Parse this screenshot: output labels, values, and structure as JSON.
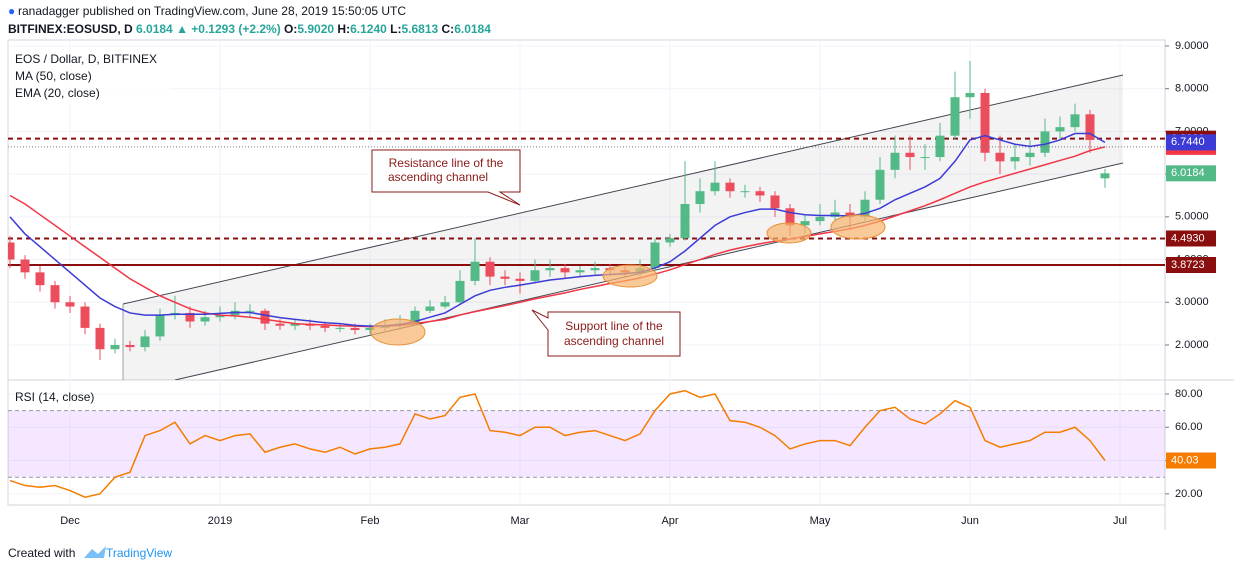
{
  "header": {
    "published": "ranadagger published on TradingView.com, June 28, 2019 15:50:05 UTC",
    "symbol": "BITFINEX:EOSUSD, D",
    "last": "6.0184",
    "change": "▲ +0.1293 (+2.2%)",
    "ohlc": [
      {
        "k": "O:",
        "v": "5.9020"
      },
      {
        "k": "H:",
        "v": "6.1240"
      },
      {
        "k": "L:",
        "v": "5.6813"
      },
      {
        "k": "C:",
        "v": "6.0184"
      }
    ]
  },
  "footer": {
    "created": "Created with",
    "brand": "TradingView"
  },
  "chart_data": [
    {
      "type": "candlestick",
      "title": "EOS / Dollar, D, BITFINEX",
      "categories": [
        null,
        null,
        null,
        null,
        "Dec",
        null,
        null,
        null,
        null,
        null,
        null,
        null,
        null,
        null,
        "2019",
        null,
        null,
        null,
        null,
        null,
        null,
        null,
        null,
        null,
        "Feb",
        null,
        null,
        null,
        null,
        null,
        null,
        null,
        null,
        null,
        "Mar",
        null,
        null,
        null,
        null,
        null,
        null,
        null,
        null,
        null,
        "Apr",
        null,
        null,
        null,
        null,
        null,
        null,
        null,
        null,
        null,
        "May",
        null,
        null,
        null,
        null,
        null,
        null,
        null,
        null,
        null,
        "Jun",
        null,
        null,
        null,
        null,
        null,
        null,
        null,
        null,
        null,
        "Jul"
      ],
      "open": [
        4.4,
        4.0,
        3.7,
        3.4,
        3.0,
        2.9,
        2.4,
        1.9,
        2.0,
        1.95,
        2.2,
        2.7,
        2.75,
        2.55,
        2.65,
        2.7,
        2.8,
        2.8,
        2.5,
        2.45,
        2.5,
        2.45,
        2.4,
        2.4,
        2.35,
        2.4,
        2.45,
        2.5,
        2.8,
        2.9,
        3.0,
        3.5,
        3.95,
        3.6,
        3.55,
        3.5,
        3.75,
        3.8,
        3.7,
        3.75,
        3.8,
        3.75,
        3.7,
        3.8,
        4.4,
        4.5,
        5.3,
        5.6,
        5.8,
        5.6,
        5.6,
        5.5,
        5.2,
        4.8,
        4.9,
        5.0,
        5.1,
        5.0,
        5.4,
        6.1,
        6.5,
        6.4,
        6.4,
        6.9,
        7.8,
        7.9,
        6.5,
        6.3,
        6.4,
        6.5,
        7.0,
        7.1,
        7.4,
        5.902,
        null
      ],
      "high": [
        4.55,
        4.1,
        3.85,
        3.5,
        3.15,
        3.0,
        2.5,
        2.15,
        2.1,
        2.35,
        2.85,
        3.15,
        2.9,
        2.8,
        2.9,
        3.0,
        2.95,
        2.85,
        2.6,
        2.6,
        2.6,
        2.55,
        2.5,
        2.5,
        2.5,
        2.6,
        2.7,
        2.9,
        3.05,
        3.15,
        3.75,
        4.5,
        4.05,
        3.75,
        3.7,
        4.0,
        4.0,
        3.9,
        3.85,
        3.95,
        3.9,
        3.85,
        4.0,
        4.5,
        4.6,
        6.3,
        5.9,
        6.3,
        5.9,
        5.75,
        5.7,
        5.6,
        5.3,
        5.05,
        5.3,
        5.4,
        5.3,
        5.6,
        6.4,
        6.9,
        6.9,
        6.7,
        7.2,
        8.4,
        8.65,
        8.0,
        6.9,
        6.7,
        6.8,
        7.3,
        7.35,
        7.65,
        7.5,
        6.124,
        null
      ],
      "low": [
        3.8,
        3.55,
        3.25,
        2.85,
        2.75,
        2.25,
        1.65,
        1.8,
        1.85,
        1.85,
        2.1,
        2.6,
        2.4,
        2.45,
        2.55,
        2.6,
        2.65,
        2.35,
        2.35,
        2.35,
        2.35,
        2.3,
        2.3,
        2.25,
        2.25,
        2.3,
        2.35,
        2.45,
        2.75,
        2.85,
        2.95,
        3.4,
        3.4,
        3.4,
        3.2,
        3.45,
        3.6,
        3.55,
        3.6,
        3.65,
        3.65,
        3.6,
        3.6,
        3.75,
        4.3,
        4.45,
        5.1,
        5.5,
        5.45,
        5.45,
        5.35,
        5.0,
        4.55,
        4.6,
        4.8,
        4.9,
        4.7,
        4.9,
        5.3,
        5.9,
        6.1,
        6.1,
        6.3,
        6.8,
        7.3,
        6.3,
        6.0,
        6.1,
        6.2,
        6.4,
        6.8,
        7.0,
        6.5,
        5.6813,
        null
      ],
      "close": [
        4.0,
        3.7,
        3.4,
        3.0,
        2.9,
        2.4,
        1.9,
        2.0,
        1.95,
        2.2,
        2.7,
        2.75,
        2.55,
        2.65,
        2.7,
        2.8,
        2.8,
        2.5,
        2.45,
        2.5,
        2.45,
        2.4,
        2.4,
        2.35,
        2.4,
        2.45,
        2.5,
        2.8,
        2.9,
        3.0,
        3.5,
        3.95,
        3.6,
        3.55,
        3.5,
        3.75,
        3.8,
        3.7,
        3.75,
        3.8,
        3.75,
        3.7,
        3.8,
        4.4,
        4.5,
        5.3,
        5.6,
        5.8,
        5.6,
        5.6,
        5.5,
        5.2,
        4.8,
        4.9,
        5.0,
        5.1,
        5.0,
        5.4,
        6.1,
        6.5,
        6.4,
        6.4,
        6.9,
        7.8,
        7.9,
        6.5,
        6.3,
        6.4,
        6.5,
        7.0,
        7.1,
        7.4,
        6.8,
        6.0184,
        null
      ],
      "up_color": "#53b987",
      "down_color": "#eb4d5c",
      "last_label_color": "#53b987",
      "series": [
        {
          "name": "MA (50, close)",
          "color": "#f23645",
          "last_line": "dotted",
          "values": [
            5.5,
            5.3,
            5.05,
            4.8,
            4.55,
            4.3,
            4.05,
            3.8,
            3.55,
            3.35,
            3.15,
            3.0,
            2.85,
            2.75,
            2.7,
            2.68,
            2.65,
            2.6,
            2.55,
            2.5,
            2.48,
            2.47,
            2.45,
            2.44,
            2.43,
            2.44,
            2.46,
            2.5,
            2.55,
            2.6,
            2.7,
            2.78,
            2.85,
            2.92,
            3.0,
            3.08,
            3.15,
            3.22,
            3.3,
            3.37,
            3.44,
            3.5,
            3.57,
            3.66,
            3.76,
            3.88,
            4.0,
            4.12,
            4.22,
            4.3,
            4.37,
            4.43,
            4.48,
            4.54,
            4.6,
            4.66,
            4.72,
            4.8,
            4.9,
            5.02,
            5.14,
            5.26,
            5.4,
            5.55,
            5.7,
            5.82,
            5.92,
            6.02,
            6.12,
            6.22,
            6.32,
            6.42,
            6.55,
            6.6382,
            null
          ]
        },
        {
          "name": "EMA (20, close)",
          "color": "#3d3bd6",
          "values": [
            5.0,
            4.6,
            4.3,
            4.0,
            3.7,
            3.4,
            3.1,
            2.9,
            2.75,
            2.7,
            2.7,
            2.72,
            2.72,
            2.72,
            2.74,
            2.76,
            2.76,
            2.7,
            2.64,
            2.6,
            2.56,
            2.52,
            2.5,
            2.46,
            2.44,
            2.45,
            2.48,
            2.55,
            2.65,
            2.75,
            2.95,
            3.15,
            3.28,
            3.35,
            3.4,
            3.46,
            3.52,
            3.56,
            3.6,
            3.63,
            3.65,
            3.67,
            3.7,
            3.8,
            3.95,
            4.2,
            4.5,
            4.8,
            5.0,
            5.1,
            5.18,
            5.18,
            5.1,
            5.05,
            5.03,
            5.03,
            5.02,
            5.08,
            5.2,
            5.4,
            5.55,
            5.7,
            5.9,
            6.3,
            6.8,
            6.9,
            6.8,
            6.7,
            6.65,
            6.7,
            6.8,
            6.95,
            6.95,
            6.744,
            null
          ],
          "value_labels": [
            null,
            null,
            null,
            null,
            null,
            null,
            null,
            null,
            null,
            null,
            null,
            null,
            null,
            null,
            null,
            null,
            null,
            null,
            null,
            null,
            null,
            null,
            null,
            null,
            null,
            null,
            null,
            null,
            null,
            null,
            null,
            null,
            null,
            null,
            null,
            null,
            null,
            null,
            null,
            null,
            null,
            null,
            null,
            null,
            null,
            null,
            null,
            null,
            null,
            null,
            null,
            null,
            null,
            null,
            null,
            null,
            null,
            null,
            null,
            null,
            null,
            null,
            null,
            null,
            null,
            null,
            null,
            null,
            null,
            null,
            null,
            null,
            null,
            "6.7440",
            null
          ]
        }
      ],
      "price_lines": [
        {
          "value": 6.8299,
          "color": "#8b0e0e",
          "line": "dashed"
        },
        {
          "value": 4.493,
          "label": "4.4930",
          "color": "#8b0e0e",
          "line": "dashed"
        },
        {
          "value": 3.8723,
          "color": "#8b0e0e",
          "line": "solid"
        }
      ],
      "annotations": [
        {
          "lines": [
            "Resistance line of the",
            "ascending channel"
          ]
        },
        {
          "lines": [
            "Support line of the",
            "ascending channel"
          ]
        }
      ],
      "ylim": [
        1.18,
        9.14
      ],
      "yticks": [
        {
          "value": 2,
          "label": "2.0000"
        },
        {
          "value": 3,
          "label": "3.0000"
        },
        {
          "value": 4,
          "label": "4.0000"
        },
        {
          "value": 5,
          "label": "5.0000"
        },
        {
          "value": 6,
          "label": "6.0000"
        },
        {
          "value": 7,
          "label": "7.0000"
        },
        {
          "value": 8,
          "label": "8.0000"
        },
        {
          "value": 9,
          "label": "9.0000"
        }
      ],
      "grid": true
    },
    {
      "type": "line",
      "title": "RSI (14, close)",
      "color": "#f57c00",
      "values": [
        28,
        25,
        24,
        25,
        22,
        18,
        20,
        30,
        33,
        55,
        58,
        63,
        50,
        55,
        52,
        55,
        56,
        45,
        48,
        50,
        47,
        45,
        48,
        44,
        47,
        48,
        50,
        68,
        65,
        67,
        78,
        80,
        58,
        57,
        55,
        60,
        60,
        55,
        57,
        58,
        55,
        52,
        56,
        70,
        80,
        82,
        78,
        80,
        64,
        63,
        60,
        55,
        47,
        50,
        52,
        52,
        49,
        60,
        70,
        72,
        65,
        62,
        68,
        76,
        72,
        52,
        48,
        50,
        52,
        57,
        57,
        60,
        52,
        40.03,
        null
      ],
      "band": [
        30,
        70
      ],
      "ylim": [
        13.3,
        88.4
      ],
      "yticks": [
        {
          "value": 20,
          "label": "20.00"
        },
        {
          "value": 40,
          "label": "40.00"
        },
        {
          "value": 60,
          "label": "60.00"
        },
        {
          "value": 80,
          "label": "80.00"
        }
      ],
      "grid": true
    }
  ]
}
